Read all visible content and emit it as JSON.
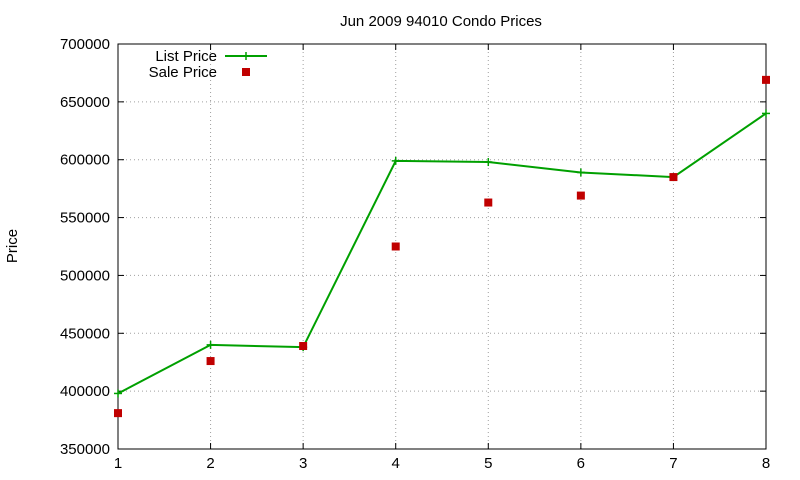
{
  "chart_data": {
    "type": "line",
    "title": "Jun 2009 94010 Condo Prices",
    "xlabel": "",
    "ylabel": "Price",
    "x": [
      1,
      2,
      3,
      4,
      5,
      6,
      7,
      8
    ],
    "xlim": [
      1,
      8
    ],
    "ylim": [
      350000,
      700000
    ],
    "x_ticks": [
      "1",
      "2",
      "3",
      "4",
      "5",
      "6",
      "7",
      "8"
    ],
    "y_ticks": [
      "350000",
      "400000",
      "450000",
      "500000",
      "550000",
      "600000",
      "650000",
      "700000"
    ],
    "grid": true,
    "legend_position": "top-left",
    "series": [
      {
        "name": "List Price",
        "style": "lines-with-plus-markers",
        "color": "#00a000",
        "values": [
          398000,
          440000,
          438000,
          599000,
          598000,
          589000,
          585000,
          640000
        ]
      },
      {
        "name": "Sale Price",
        "style": "square-points",
        "color": "#c00000",
        "values": [
          381000,
          426000,
          439000,
          525000,
          563000,
          569000,
          585000,
          669000
        ]
      }
    ]
  }
}
